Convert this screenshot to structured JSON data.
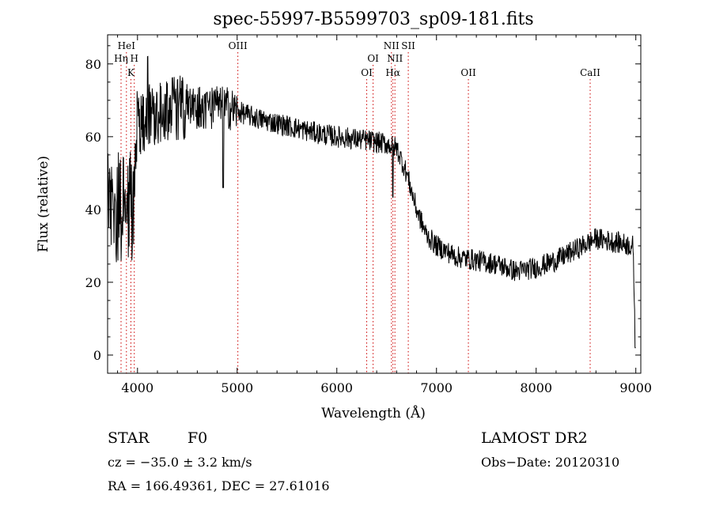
{
  "chart_data": {
    "type": "line",
    "title": "spec-55997-B5599703_sp09-181.fits",
    "xlabel": "Wavelength (Å)",
    "ylabel": "Flux (relative)",
    "xlim": [
      3700,
      9050
    ],
    "ylim": [
      -5,
      88
    ],
    "xticks": [
      4000,
      5000,
      6000,
      7000,
      8000,
      9000
    ],
    "yticks": [
      0,
      20,
      40,
      60,
      80
    ],
    "line_color": "#000000",
    "marker_color": "#cc0000",
    "spectral_lines": [
      {
        "label": "HeI",
        "x": 3889,
        "row": 0
      },
      {
        "label": "Hη",
        "x": 3835,
        "row": 1
      },
      {
        "label": "H",
        "x": 3968,
        "row": 1
      },
      {
        "label": "K",
        "x": 3934,
        "row": 2
      },
      {
        "label": "OIII",
        "x": 5007,
        "row": 0
      },
      {
        "label": "OI",
        "x": 6364,
        "row": 1
      },
      {
        "label": "OI",
        "x": 6300,
        "row": 2
      },
      {
        "label": "NII",
        "x": 6548,
        "row": 0
      },
      {
        "label": "SII",
        "x": 6717,
        "row": 0
      },
      {
        "label": "NII",
        "x": 6583,
        "row": 1
      },
      {
        "label": "Hα",
        "x": 6563,
        "row": 2
      },
      {
        "label": "OII",
        "x": 7320,
        "row": 2
      },
      {
        "label": "CaII",
        "x": 8542,
        "row": 2
      }
    ],
    "continuum": [
      [
        3700,
        40
      ],
      [
        3800,
        40
      ],
      [
        3900,
        38
      ],
      [
        3950,
        42
      ],
      [
        4000,
        62
      ],
      [
        4100,
        66
      ],
      [
        4300,
        68
      ],
      [
        4500,
        68
      ],
      [
        4700,
        68
      ],
      [
        4900,
        68
      ],
      [
        5000,
        67
      ],
      [
        5200,
        65
      ],
      [
        5500,
        63
      ],
      [
        5800,
        61
      ],
      [
        6000,
        60
      ],
      [
        6300,
        59
      ],
      [
        6500,
        58
      ],
      [
        6600,
        57
      ],
      [
        6700,
        50
      ],
      [
        6800,
        40
      ],
      [
        6900,
        33
      ],
      [
        7000,
        30
      ],
      [
        7200,
        27
      ],
      [
        7400,
        26
      ],
      [
        7600,
        25
      ],
      [
        7800,
        23
      ],
      [
        8000,
        24
      ],
      [
        8200,
        26
      ],
      [
        8400,
        29
      ],
      [
        8600,
        32
      ],
      [
        8800,
        31
      ],
      [
        8970,
        30
      ],
      [
        9000,
        2
      ]
    ]
  },
  "info": {
    "object_class": "STAR",
    "subclass": "F0",
    "survey": "LAMOST DR2",
    "cz": "cz = −35.0 ± 3.2 km/s",
    "obs_date": "Obs−Date: 20120310",
    "coords": "RA = 166.49361, DEC =  27.61016"
  }
}
